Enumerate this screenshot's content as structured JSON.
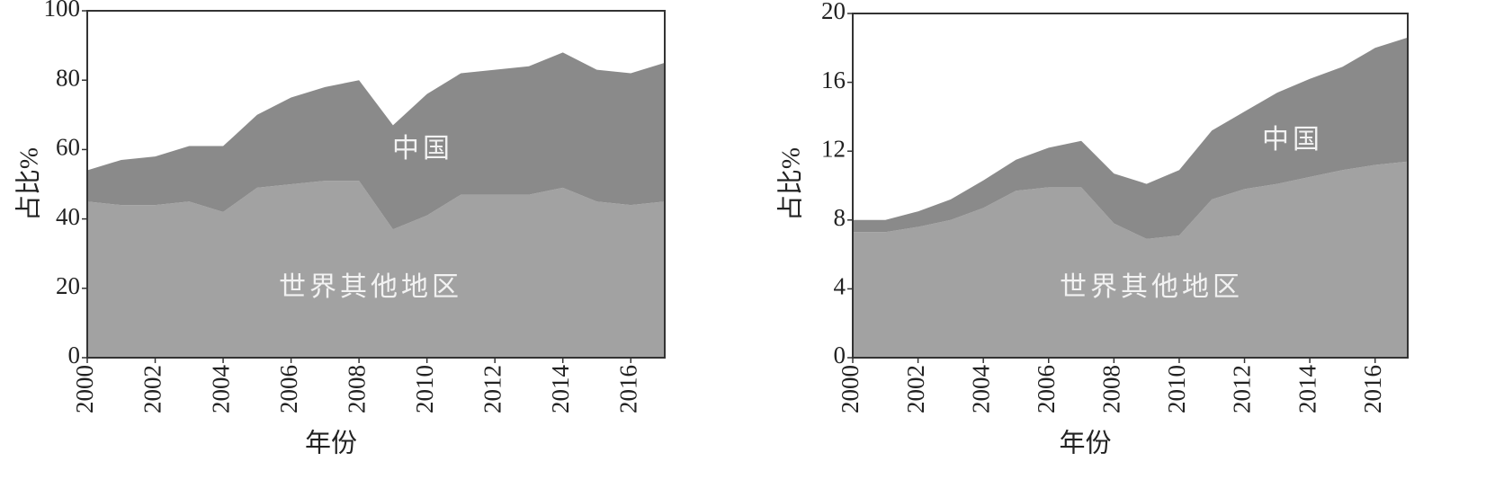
{
  "chart_data": [
    {
      "type": "stacked_area",
      "xlabel": "年份",
      "ylabel": "占比%",
      "x": [
        2000,
        2001,
        2002,
        2003,
        2004,
        2005,
        2006,
        2007,
        2008,
        2009,
        2010,
        2011,
        2012,
        2013,
        2014,
        2015,
        2016,
        2017
      ],
      "series": [
        {
          "name": "世界其他地区",
          "color": "#a2a2a2",
          "values": [
            45,
            44,
            44,
            45,
            42,
            49,
            50,
            51,
            51,
            37,
            41,
            47,
            47,
            47,
            49,
            45,
            44,
            45
          ]
        },
        {
          "name": "中国",
          "color": "#8a8a8a",
          "values": [
            9,
            13,
            14,
            16,
            19,
            21,
            25,
            27,
            29,
            30,
            35,
            35,
            36,
            37,
            39,
            38,
            38,
            40
          ]
        }
      ],
      "xlim": [
        2000,
        2017
      ],
      "xticks": [
        2000,
        2002,
        2004,
        2006,
        2008,
        2010,
        2012,
        2014,
        2016
      ],
      "ylim": [
        0,
        100
      ],
      "yticks": [
        0,
        20,
        40,
        60,
        80,
        100
      ]
    },
    {
      "type": "stacked_area",
      "xlabel": "年份",
      "ylabel": "占比%",
      "x": [
        2000,
        2001,
        2002,
        2003,
        2004,
        2005,
        2006,
        2007,
        2008,
        2009,
        2010,
        2011,
        2012,
        2013,
        2014,
        2015,
        2016,
        2017
      ],
      "series": [
        {
          "name": "世界其他地区",
          "color": "#a2a2a2",
          "values": [
            7.3,
            7.3,
            7.6,
            8.0,
            8.7,
            9.7,
            9.9,
            9.9,
            7.8,
            6.9,
            7.1,
            9.2,
            9.8,
            10.1,
            10.5,
            10.9,
            11.2,
            11.4
          ]
        },
        {
          "name": "中国",
          "color": "#8a8a8a",
          "values": [
            0.7,
            0.7,
            0.9,
            1.2,
            1.6,
            1.8,
            2.3,
            2.7,
            2.9,
            3.2,
            3.8,
            4.0,
            4.5,
            5.3,
            5.7,
            6.0,
            6.8,
            7.2
          ]
        }
      ],
      "xlim": [
        2000,
        2017
      ],
      "xticks": [
        2000,
        2002,
        2004,
        2006,
        2008,
        2010,
        2012,
        2014,
        2016
      ],
      "ylim": [
        0,
        20
      ],
      "yticks": [
        0,
        4,
        8,
        12,
        16,
        20
      ]
    }
  ]
}
